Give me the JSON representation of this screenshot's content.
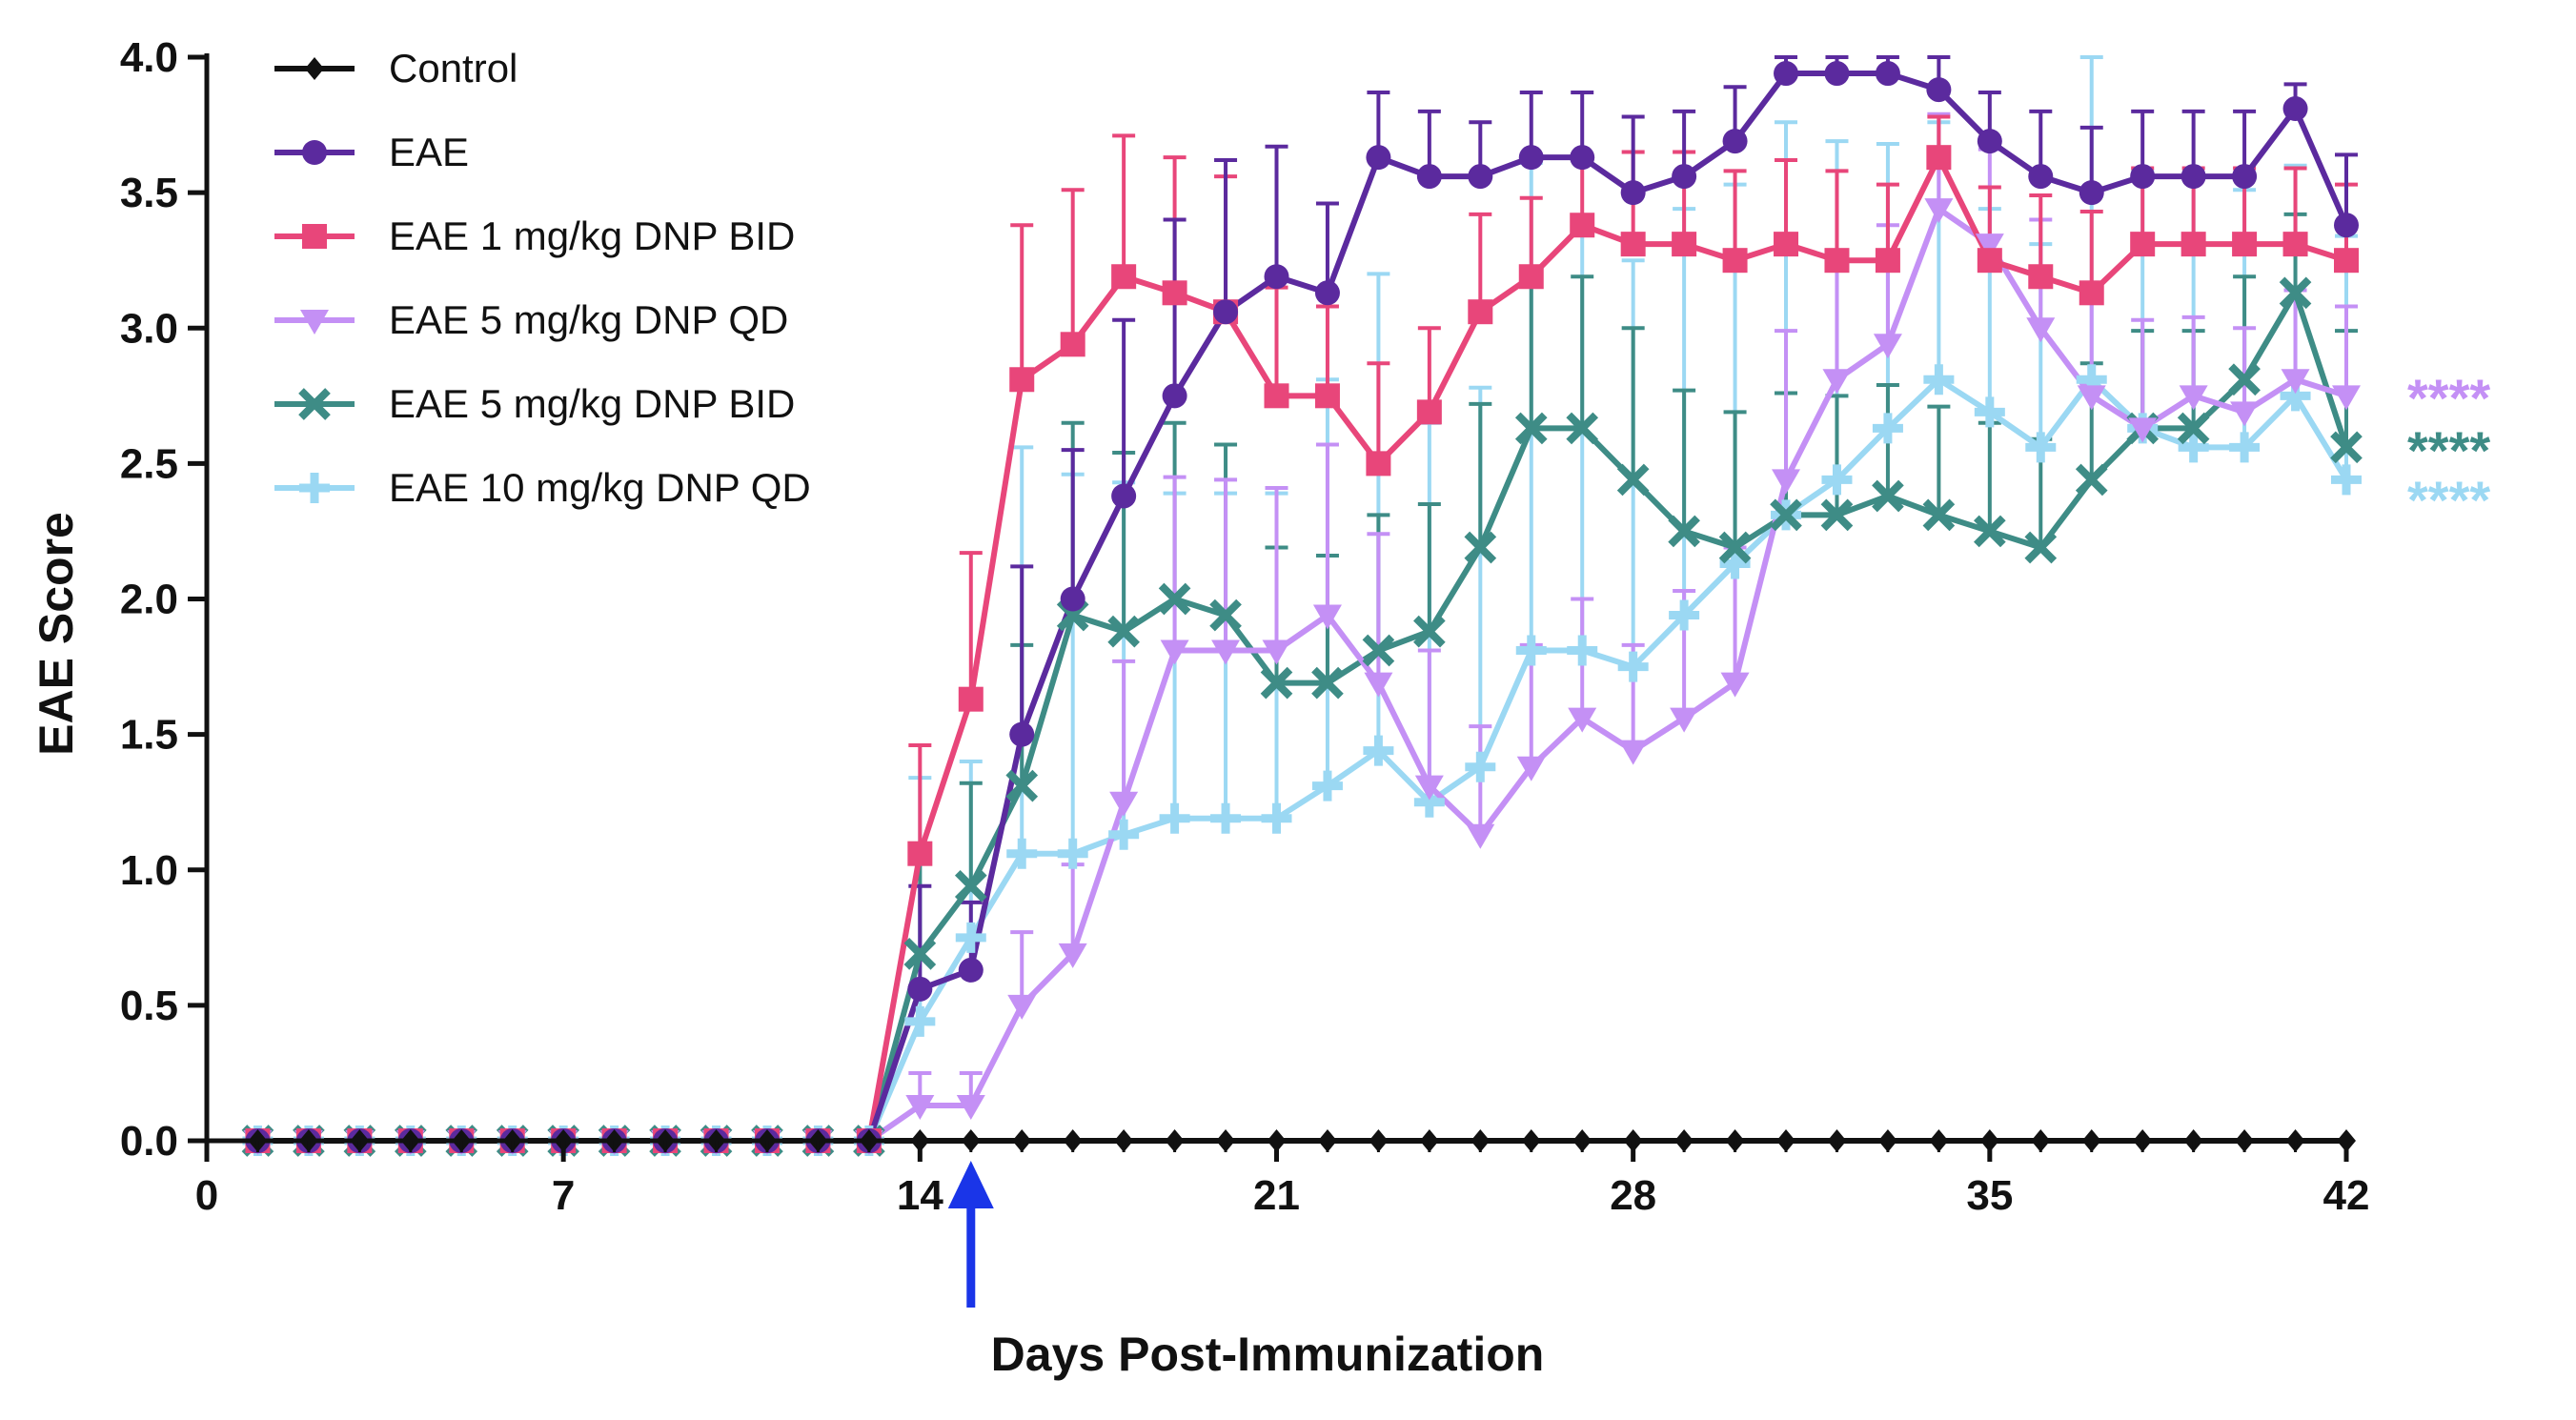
{
  "chart_data": {
    "type": "line",
    "title": "",
    "xlabel": "Days Post-Immunization",
    "ylabel": "EAE Score",
    "xlim": [
      0,
      42
    ],
    "ylim": [
      0,
      4
    ],
    "xticks": [
      0,
      7,
      14,
      21,
      28,
      35,
      42
    ],
    "yticks": [
      0.0,
      0.5,
      1.0,
      1.5,
      2.0,
      2.5,
      3.0,
      3.5,
      4.0
    ],
    "ytick_labels": [
      "0.0",
      "0.5",
      "1.0",
      "1.5",
      "2.0",
      "2.5",
      "3.0",
      "3.5",
      "4.0"
    ],
    "legend_position": "top-left",
    "annotation": {
      "type": "arrow",
      "x": 15,
      "color": "#1a35e8"
    },
    "significance": [
      {
        "series": "EAE 5 mg/kg DNP QD",
        "text": "****",
        "color": "#c490f5"
      },
      {
        "series": "EAE 5 mg/kg DNP BID",
        "text": "****",
        "color": "#3e8c86"
      },
      {
        "series": "EAE 10 mg/kg DNP QD",
        "text": "****",
        "color": "#9bd8f3"
      }
    ],
    "x": [
      1,
      2,
      3,
      4,
      5,
      6,
      7,
      8,
      9,
      10,
      11,
      12,
      13,
      14,
      15,
      16,
      17,
      18,
      19,
      20,
      21,
      22,
      23,
      24,
      25,
      26,
      27,
      28,
      29,
      30,
      31,
      32,
      33,
      34,
      35,
      36,
      37,
      38,
      39,
      40,
      41,
      42
    ],
    "series": [
      {
        "name": "Control",
        "color": "#111111",
        "marker": "diamond",
        "values": [
          0,
          0,
          0,
          0,
          0,
          0,
          0,
          0,
          0,
          0,
          0,
          0,
          0,
          0,
          0,
          0,
          0,
          0,
          0,
          0,
          0,
          0,
          0,
          0,
          0,
          0,
          0,
          0,
          0,
          0,
          0,
          0,
          0,
          0,
          0,
          0,
          0,
          0,
          0,
          0,
          0,
          0
        ],
        "errors": [
          0,
          0,
          0,
          0,
          0,
          0,
          0,
          0,
          0,
          0,
          0,
          0,
          0,
          0,
          0,
          0,
          0,
          0,
          0,
          0,
          0,
          0,
          0,
          0,
          0,
          0,
          0,
          0,
          0,
          0,
          0,
          0,
          0,
          0,
          0,
          0,
          0,
          0,
          0,
          0,
          0,
          0
        ]
      },
      {
        "name": "EAE",
        "color": "#5b2a9e",
        "marker": "circle",
        "values": [
          0,
          0,
          0,
          0,
          0,
          0,
          0,
          0,
          0,
          0,
          0,
          0,
          0,
          0.56,
          0.63,
          1.5,
          2.0,
          2.38,
          2.75,
          3.06,
          3.19,
          3.13,
          3.63,
          3.56,
          3.56,
          3.63,
          3.63,
          3.5,
          3.56,
          3.69,
          3.94,
          3.94,
          3.94,
          3.88,
          3.69,
          3.56,
          3.5,
          3.56,
          3.56,
          3.56,
          3.81,
          3.38
        ],
        "errors": [
          0,
          0,
          0,
          0,
          0,
          0,
          0,
          0,
          0,
          0,
          0,
          0,
          0,
          0.38,
          0.25,
          0.62,
          0.55,
          0.65,
          0.65,
          0.56,
          0.48,
          0.33,
          0.24,
          0.24,
          0.2,
          0.24,
          0.24,
          0.28,
          0.24,
          0.2,
          0.06,
          0.06,
          0.06,
          0.12,
          0.18,
          0.24,
          0.24,
          0.24,
          0.24,
          0.24,
          0.09,
          0.26
        ]
      },
      {
        "name": "EAE 1 mg/kg DNP BID",
        "color": "#e8467a",
        "marker": "square",
        "values": [
          0,
          0,
          0,
          0,
          0,
          0,
          0,
          0,
          0,
          0,
          0,
          0,
          0,
          1.06,
          1.63,
          2.81,
          2.94,
          3.19,
          3.13,
          3.06,
          2.75,
          2.75,
          2.5,
          2.69,
          3.06,
          3.19,
          3.38,
          3.31,
          3.31,
          3.25,
          3.31,
          3.25,
          3.25,
          3.63,
          3.25,
          3.19,
          3.13,
          3.31,
          3.31,
          3.31,
          3.31,
          3.25
        ],
        "errors": [
          0,
          0,
          0,
          0,
          0,
          0,
          0,
          0,
          0,
          0,
          0,
          0,
          0,
          0.4,
          0.54,
          0.57,
          0.57,
          0.52,
          0.5,
          0.5,
          0.4,
          0.33,
          0.37,
          0.31,
          0.36,
          0.29,
          0.26,
          0.34,
          0.34,
          0.33,
          0.31,
          0.33,
          0.28,
          0.15,
          0.27,
          0.3,
          0.3,
          0.28,
          0.28,
          0.28,
          0.28,
          0.28
        ]
      },
      {
        "name": "EAE 5 mg/kg DNP QD",
        "color": "#c490f5",
        "marker": "triangle-down",
        "values": [
          0,
          0,
          0,
          0,
          0,
          0,
          0,
          0,
          0,
          0,
          0,
          0,
          0,
          0.13,
          0.13,
          0.5,
          0.69,
          1.25,
          1.81,
          1.81,
          1.81,
          1.94,
          1.69,
          1.31,
          1.13,
          1.38,
          1.56,
          1.44,
          1.56,
          1.69,
          2.44,
          2.81,
          2.94,
          3.44,
          3.31,
          3.0,
          2.75,
          2.63,
          2.75,
          2.69,
          2.81,
          2.75
        ],
        "errors": [
          0,
          0,
          0,
          0,
          0,
          0,
          0,
          0,
          0,
          0,
          0,
          0,
          0,
          0.12,
          0.12,
          0.27,
          0.33,
          0.52,
          0.64,
          0.63,
          0.6,
          0.63,
          0.55,
          0.5,
          0.4,
          0.45,
          0.44,
          0.39,
          0.47,
          0.5,
          0.55,
          0.45,
          0.44,
          0.35,
          0.35,
          0.4,
          0.4,
          0.4,
          0.29,
          0.31,
          0.33,
          0.33
        ]
      },
      {
        "name": "EAE 5 mg/kg DNP BID",
        "color": "#3e8c86",
        "marker": "x",
        "values": [
          0,
          0,
          0,
          0,
          0,
          0,
          0,
          0,
          0,
          0,
          0,
          0,
          0,
          0.69,
          0.94,
          1.31,
          1.94,
          1.88,
          2.0,
          1.94,
          1.69,
          1.69,
          1.81,
          1.88,
          2.19,
          2.63,
          2.63,
          2.44,
          2.25,
          2.19,
          2.31,
          2.31,
          2.38,
          2.31,
          2.25,
          2.19,
          2.44,
          2.63,
          2.63,
          2.81,
          3.13,
          2.56
        ],
        "errors": [
          0,
          0,
          0,
          0,
          0,
          0,
          0,
          0,
          0,
          0,
          0,
          0,
          0,
          0.35,
          0.38,
          0.52,
          0.71,
          0.66,
          0.65,
          0.63,
          0.5,
          0.47,
          0.5,
          0.47,
          0.53,
          0.58,
          0.56,
          0.56,
          0.52,
          0.5,
          0.45,
          0.44,
          0.41,
          0.4,
          0.4,
          0.4,
          0.43,
          0.36,
          0.36,
          0.38,
          0.29,
          0.43
        ]
      },
      {
        "name": "EAE 10 mg/kg DNP QD",
        "color": "#9bd8f3",
        "marker": "plus",
        "values": [
          0,
          0,
          0,
          0,
          0,
          0,
          0,
          0,
          0,
          0,
          0,
          0,
          0,
          0.44,
          0.75,
          1.06,
          1.06,
          1.13,
          1.19,
          1.19,
          1.19,
          1.31,
          1.44,
          1.25,
          1.38,
          1.81,
          1.81,
          1.75,
          1.94,
          2.13,
          2.31,
          2.44,
          2.63,
          2.81,
          2.69,
          2.56,
          2.81,
          2.63,
          2.56,
          2.56,
          2.75,
          2.44
        ],
        "errors": [
          0,
          0,
          0,
          0,
          0,
          0,
          0,
          0,
          0,
          0,
          0,
          0,
          0,
          0.9,
          0.65,
          1.5,
          1.4,
          1.3,
          1.2,
          1.2,
          1.2,
          1.5,
          1.76,
          1.4,
          1.4,
          1.8,
          1.6,
          1.5,
          1.5,
          1.4,
          1.45,
          1.25,
          1.05,
          0.95,
          0.75,
          0.75,
          1.2,
          0.95,
          1.0,
          0.95,
          0.85,
          0.9
        ]
      }
    ]
  }
}
